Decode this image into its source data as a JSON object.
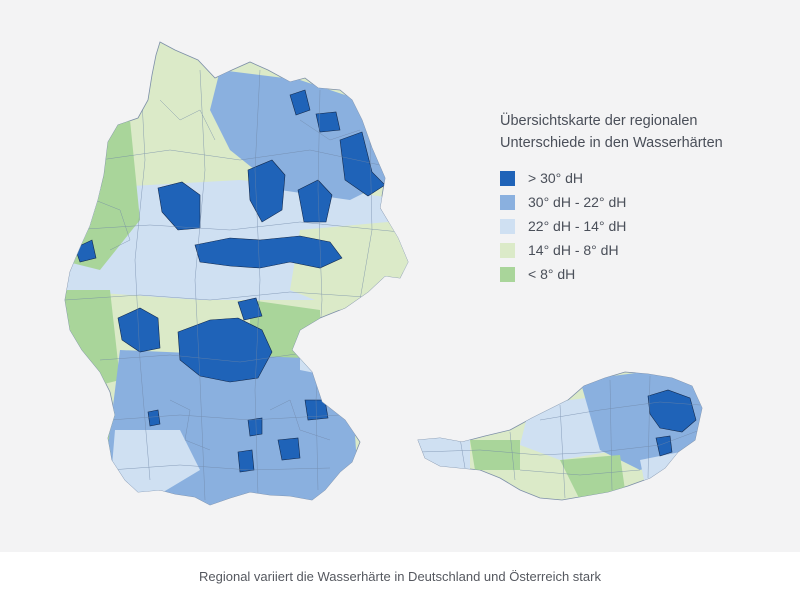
{
  "legend": {
    "title_line1": "Übersichtskarte der regionalen",
    "title_line2": "Unterschiede in den Wasserhärten",
    "items": [
      {
        "label": "> 30° dH",
        "color": "#1f63b8"
      },
      {
        "label": "30° dH - 22° dH",
        "color": "#8ab0df"
      },
      {
        "label": "22° dH - 14° dH",
        "color": "#cfe0f2"
      },
      {
        "label": "14° dH - 8° dH",
        "color": "#dbeac8"
      },
      {
        "label": "< 8° dH",
        "color": "#a9d59a"
      }
    ]
  },
  "caption": "Regional variiert die Wasserhärte in Deutschland und Österreich stark"
}
